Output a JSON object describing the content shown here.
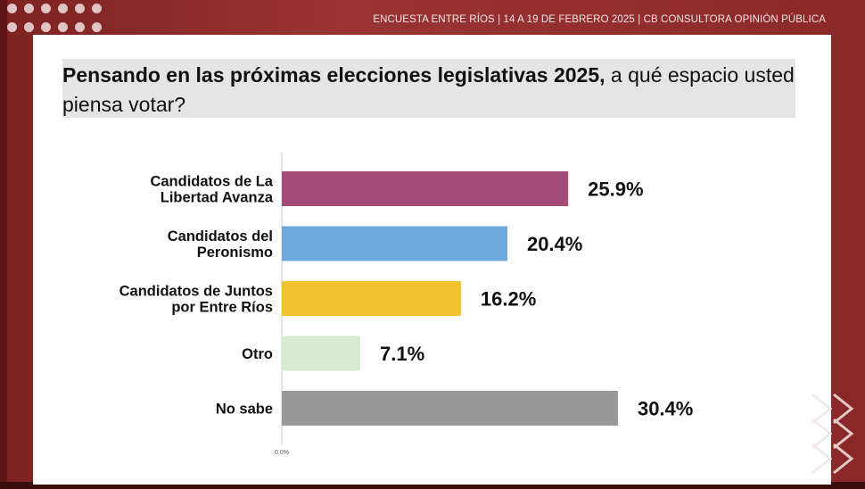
{
  "header": {
    "text": "ENCUESTA ENTRE RÍOS   | 14 A 19 DE FEBRERO 2025 | CB CONSULTORA OPINIÓN PÚBLICA"
  },
  "question": {
    "bold": "Pensando en las próximas elecciones legislativas 2025,",
    "rest": " a qué espacio usted piensa votar?"
  },
  "colors": {
    "frame": "#8b2a2a",
    "bar_lla": "#a44b78",
    "bar_peronismo": "#6fa8dc",
    "bar_juntos": "#f1c232",
    "bar_otro": "#d9ead3",
    "bar_nosabe": "#999999"
  },
  "chart_data": {
    "type": "bar",
    "orientation": "horizontal",
    "categories": [
      [
        "Candidatos de La",
        "Libertad Avanza"
      ],
      [
        "Candidatos del",
        "Peronismo"
      ],
      [
        "Candidatos de Juntos",
        "por Entre Ríos"
      ],
      [
        "Otro"
      ],
      [
        "No sabe"
      ]
    ],
    "values": [
      25.9,
      20.4,
      16.2,
      7.1,
      30.4
    ],
    "value_labels": [
      "25.9%",
      "20.4%",
      "16.2%",
      "7.1%",
      "30.4%"
    ],
    "bar_colors": [
      "#a44b78",
      "#6fa8dc",
      "#f1c232",
      "#d9ead3",
      "#999999"
    ],
    "axis_origin_label": "0.0%",
    "xlim": [
      0,
      40
    ],
    "grid": false,
    "legend": "none"
  }
}
